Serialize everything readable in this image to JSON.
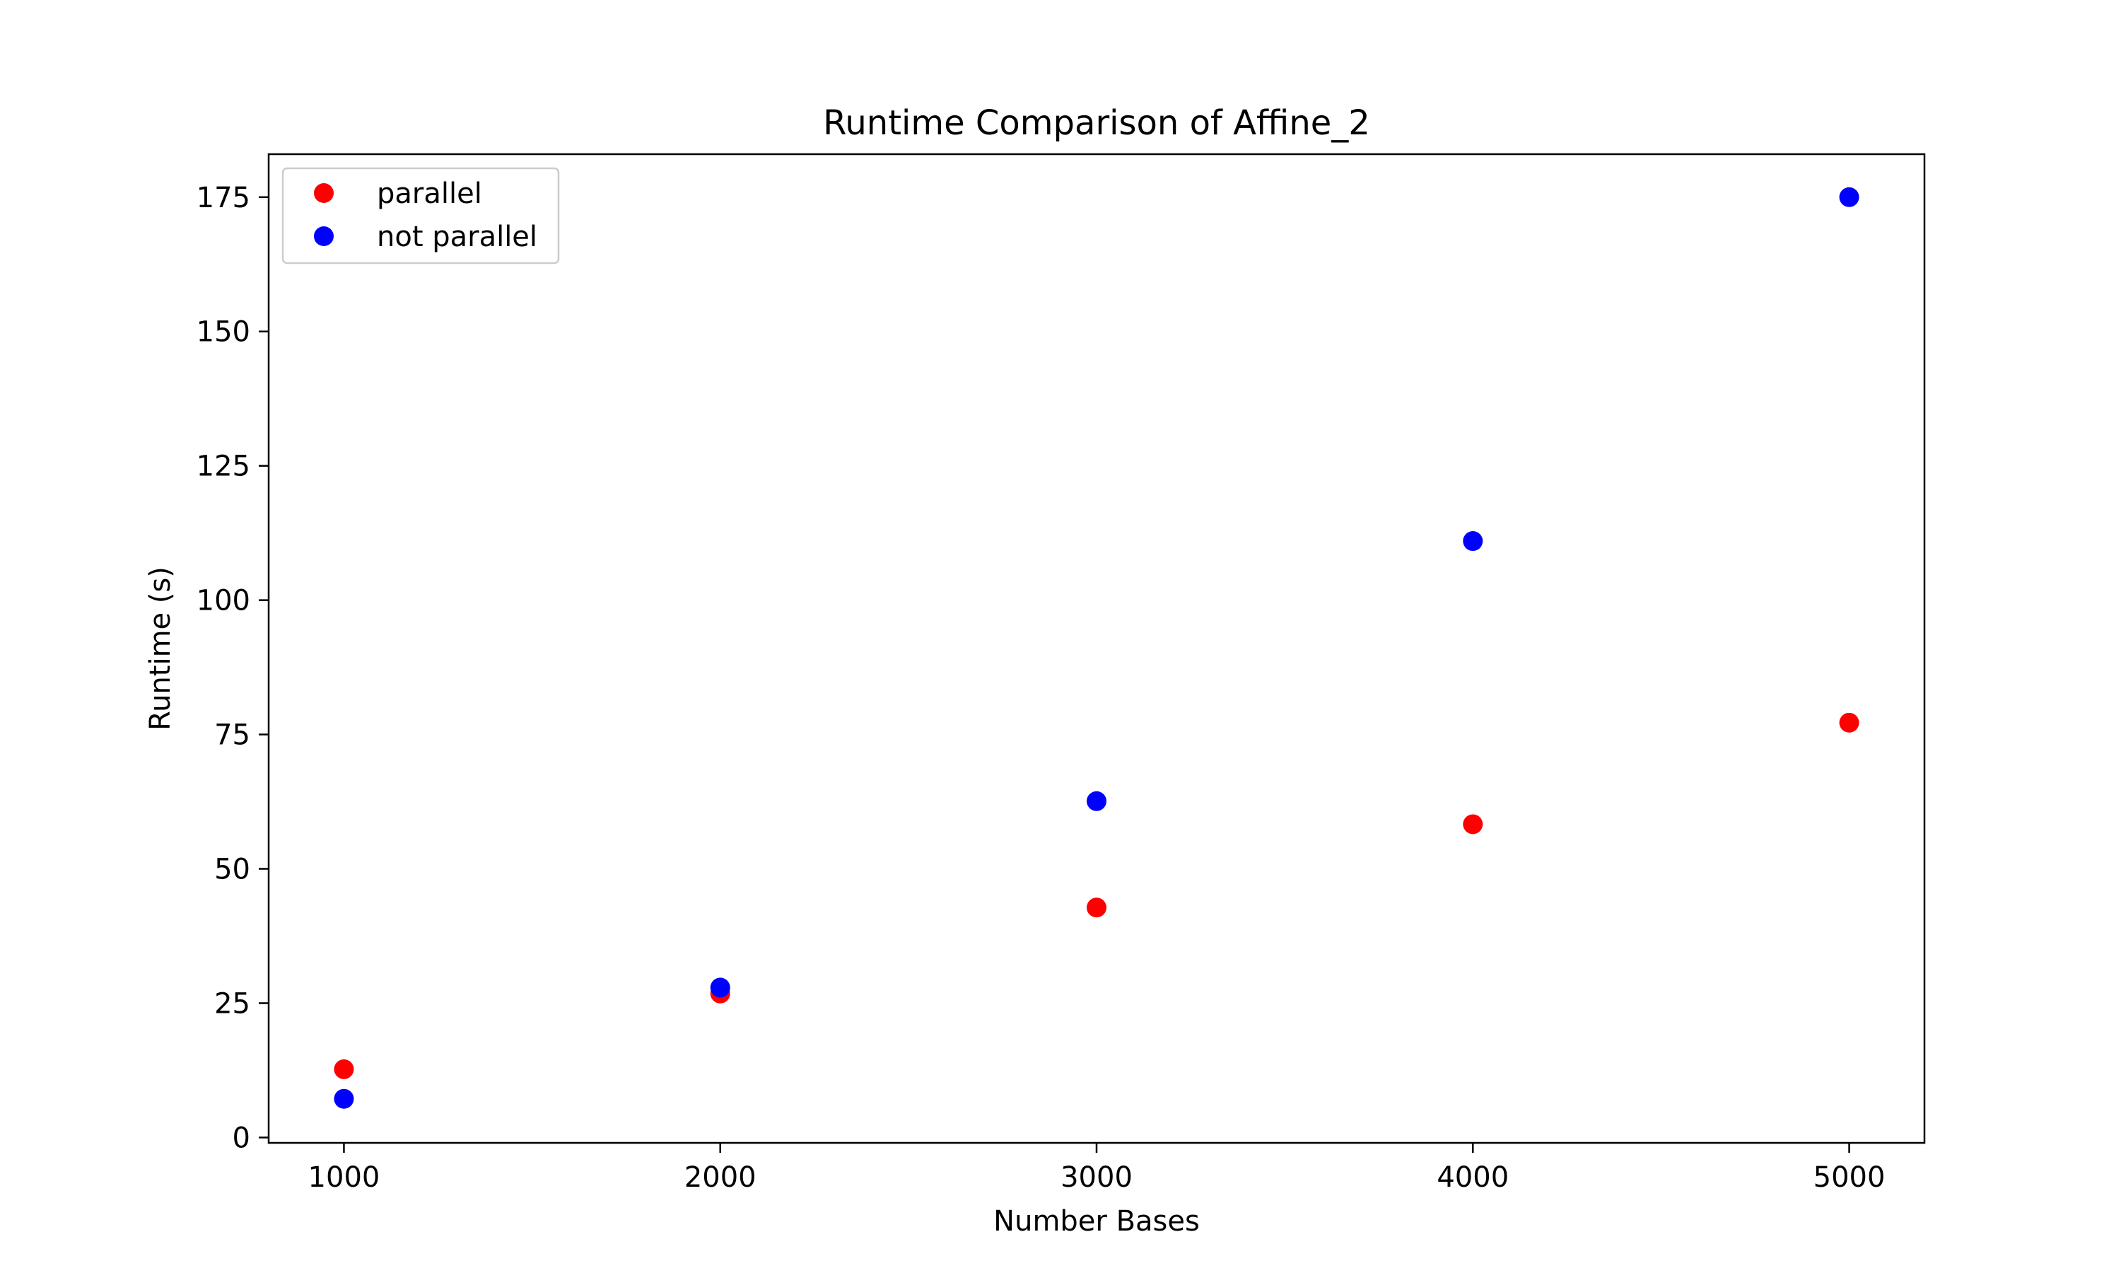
{
  "chart_data": {
    "type": "scatter",
    "title": "Runtime Comparison of Affine_2",
    "xlabel": "Number Bases",
    "ylabel": "Runtime (s)",
    "xlim": [
      800,
      5200
    ],
    "ylim": [
      -1,
      183
    ],
    "xticks": [
      1000,
      2000,
      3000,
      4000,
      5000
    ],
    "yticks": [
      0,
      25,
      50,
      75,
      100,
      125,
      150,
      175
    ],
    "grid": false,
    "legend_position": "top-left",
    "series": [
      {
        "name": "parallel",
        "color": "#ff0000",
        "x": [
          1000,
          2000,
          3000,
          4000,
          5000
        ],
        "y": [
          12.7,
          26.8,
          42.8,
          58.3,
          77.2
        ]
      },
      {
        "name": "not parallel",
        "color": "#0000ff",
        "x": [
          1000,
          2000,
          3000,
          4000,
          5000
        ],
        "y": [
          7.2,
          27.9,
          62.6,
          111.0,
          175.0
        ]
      }
    ]
  }
}
